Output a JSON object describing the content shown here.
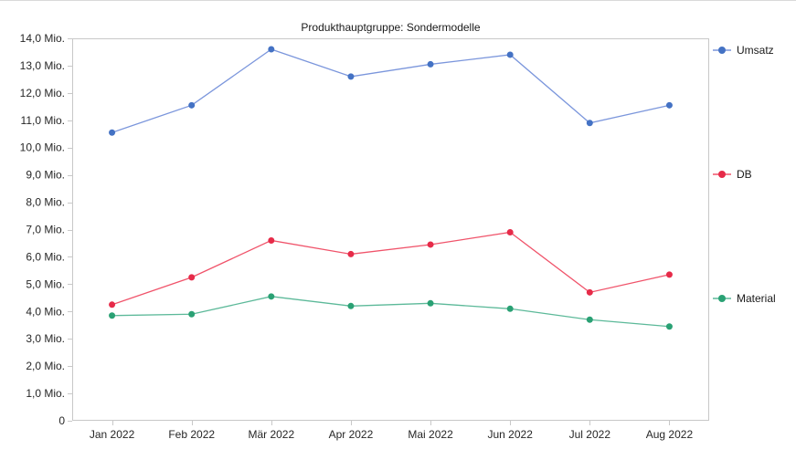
{
  "chart_data": {
    "type": "line",
    "title": "Produkthauptgruppe: Sondermodelle",
    "categories": [
      "Jan 2022",
      "Feb 2022",
      "Mär 2022",
      "Apr 2022",
      "Mai 2022",
      "Jun 2022",
      "Jul 2022",
      "Aug 2022"
    ],
    "series": [
      {
        "name": "Umsatz",
        "color": "#4472C4",
        "line_color": "#7B96DC",
        "values": [
          10.55,
          11.55,
          13.6,
          12.6,
          13.05,
          13.4,
          10.9,
          11.55
        ]
      },
      {
        "name": "DB",
        "color": "#E62B49",
        "line_color": "#F0536A",
        "values": [
          4.25,
          5.25,
          6.6,
          6.1,
          6.45,
          6.9,
          4.7,
          5.35
        ]
      },
      {
        "name": "Material",
        "color": "#2AA174",
        "line_color": "#5CB999",
        "values": [
          3.85,
          3.9,
          4.55,
          4.2,
          4.3,
          4.1,
          3.7,
          3.45
        ]
      }
    ],
    "y_axis": {
      "min": 0,
      "max": 14,
      "ticks": [
        {
          "value": 0,
          "label": "0"
        },
        {
          "value": 1,
          "label": "1,0 Mio."
        },
        {
          "value": 2,
          "label": "2,0 Mio."
        },
        {
          "value": 3,
          "label": "3,0 Mio."
        },
        {
          "value": 4,
          "label": "4,0 Mio."
        },
        {
          "value": 5,
          "label": "5,0 Mio."
        },
        {
          "value": 6,
          "label": "6,0 Mio."
        },
        {
          "value": 7,
          "label": "7,0 Mio."
        },
        {
          "value": 8,
          "label": "8,0 Mio."
        },
        {
          "value": 9,
          "label": "9,0 Mio."
        },
        {
          "value": 10,
          "label": "10,0 Mio."
        },
        {
          "value": 11,
          "label": "11,0 Mio."
        },
        {
          "value": 12,
          "label": "12,0 Mio."
        },
        {
          "value": 13,
          "label": "13,0 Mio."
        },
        {
          "value": 14,
          "label": "14,0 Mio."
        }
      ]
    },
    "xlabel": "",
    "ylabel": "",
    "grid": false,
    "legend_position": "right",
    "axis_color": "#c8c8c8",
    "text_color": "#262626"
  }
}
